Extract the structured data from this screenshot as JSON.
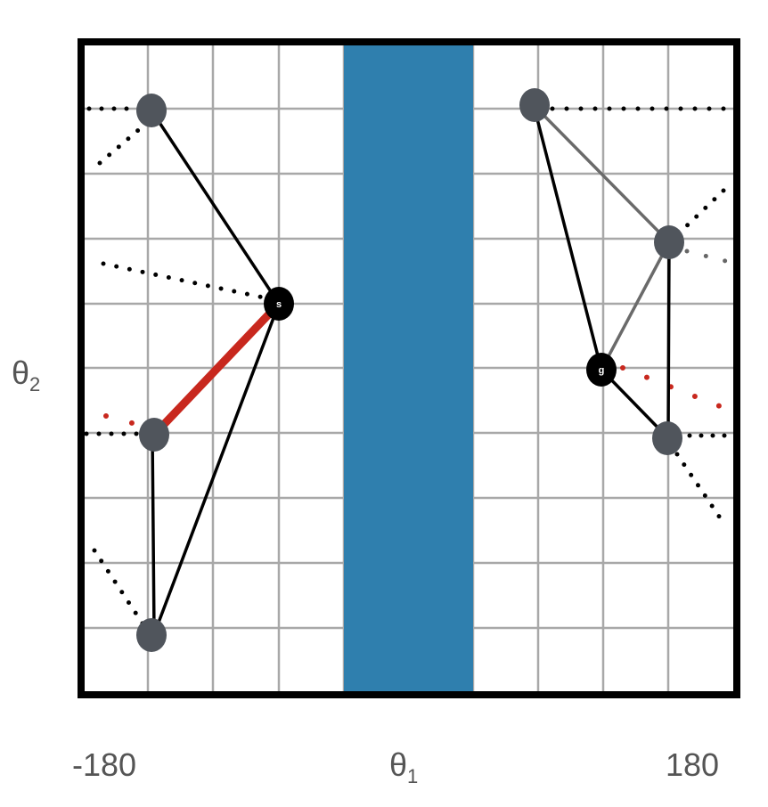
{
  "axes": {
    "y_label": "θ",
    "y_label_sub": "2",
    "x_label": "θ",
    "x_label_sub": "1",
    "x_tick_left": "-180",
    "x_tick_right": "180"
  },
  "nodes": {
    "start_marker": "s",
    "goal_marker": "g"
  },
  "colors": {
    "obstacle": "#2f7fae",
    "highlight_edge": "#c8281e",
    "node": "#50555c",
    "grid": "#a8a8a8",
    "frame": "#000000"
  }
}
